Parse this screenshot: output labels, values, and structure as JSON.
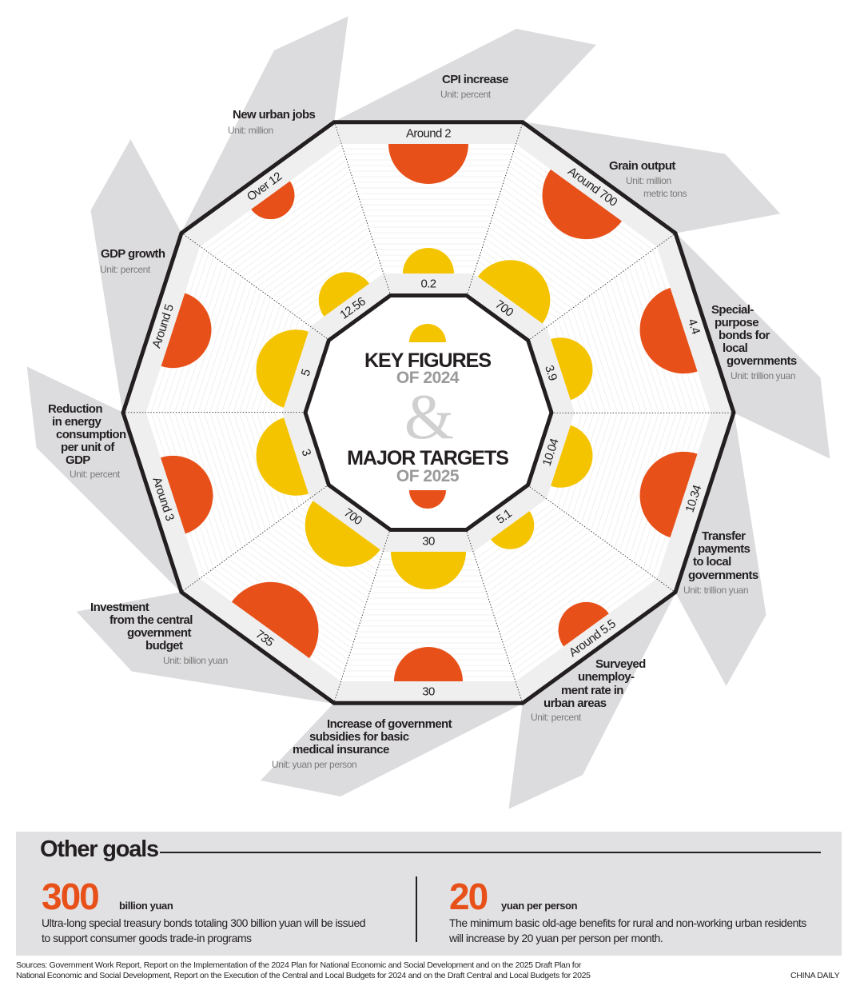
{
  "title": {
    "line1": "KEY FIGURES",
    "line1_sub": "OF 2024",
    "amp": "&",
    "line2": "MAJOR TARGETS",
    "line2_sub": "OF 2025"
  },
  "colors": {
    "target_2025": "#e8501a",
    "figure_2024": "#f5c400",
    "arm_gray": "#dcdcde",
    "outline": "#231f20"
  },
  "segments": [
    {
      "label_lines": [
        "CPI increase"
      ],
      "unit_lines": [
        "Unit: percent"
      ],
      "figure_2024": "0.2",
      "target_2025": "Around 2"
    },
    {
      "label_lines": [
        "Grain output"
      ],
      "unit_lines": [
        "Unit: million",
        "metric tons"
      ],
      "figure_2024": "700",
      "target_2025": "Around 700"
    },
    {
      "label_lines": [
        "Special-",
        "purpose",
        "bonds for",
        "local",
        "governments"
      ],
      "unit_lines": [
        "Unit: trillion yuan"
      ],
      "figure_2024": "3.9",
      "target_2025": "4.4"
    },
    {
      "label_lines": [
        "Transfer",
        "payments",
        "to local",
        "governments"
      ],
      "unit_lines": [
        "Unit: trillion yuan"
      ],
      "figure_2024": "10.04",
      "target_2025": "10.34"
    },
    {
      "label_lines": [
        "Surveyed",
        "unemploy-",
        "ment rate in",
        "urban areas"
      ],
      "unit_lines": [
        "Unit: percent"
      ],
      "figure_2024": "5.1",
      "target_2025": "Around 5.5"
    },
    {
      "label_lines": [
        "Increase of government",
        "subsidies for basic",
        "medical insurance"
      ],
      "unit_lines": [
        "Unit: yuan per person"
      ],
      "figure_2024": "30",
      "target_2025": "30"
    },
    {
      "label_lines": [
        "Investment",
        "from the central",
        "government",
        "budget"
      ],
      "unit_lines": [
        "Unit: billion yuan"
      ],
      "figure_2024": "700",
      "target_2025": "735"
    },
    {
      "label_lines": [
        "Reduction",
        "in energy",
        "consumption",
        "per unit of",
        "GDP"
      ],
      "unit_lines": [
        "Unit: percent"
      ],
      "figure_2024": "3",
      "target_2025": "Around 3"
    },
    {
      "label_lines": [
        "GDP growth"
      ],
      "unit_lines": [
        "Unit: percent"
      ],
      "figure_2024": "5",
      "target_2025": "Around 5"
    },
    {
      "label_lines": [
        "New urban jobs"
      ],
      "unit_lines": [
        "Unit: million"
      ],
      "figure_2024": "12.56",
      "target_2025": "Over 12"
    }
  ],
  "other_goals": {
    "heading": "Other goals",
    "items": [
      {
        "value": "300",
        "unit": "billion yuan",
        "lines": [
          "Ultra-long special treasury bonds totaling 300 billion yuan will be issued",
          "to support consumer goods trade-in programs"
        ]
      },
      {
        "value": "20",
        "unit": "yuan per person",
        "lines": [
          "The minimum basic old-age benefits for rural and non-working urban residents",
          "will increase by 20 yuan per person per month."
        ]
      }
    ]
  },
  "sources": [
    "Sources: Government Work Report, Report on the Implementation of the 2024 Plan for National Economic and Social Development and on the 2025 Draft Plan for",
    "National Economic and Social Development, Report on the Execution of the Central and Local Budgets for 2024 and on the Draft Central and Local Budgets for 2025"
  ],
  "credit": "CHINA DAILY"
}
